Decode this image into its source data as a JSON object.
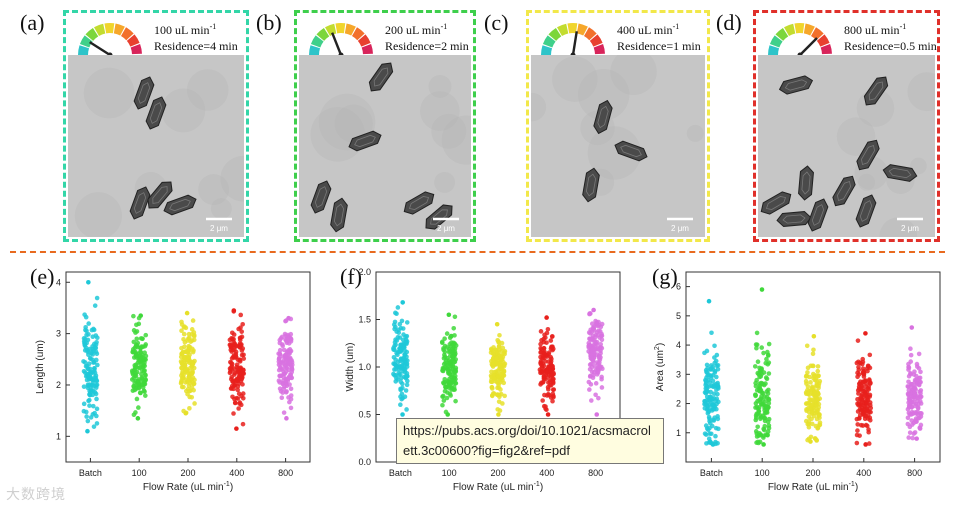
{
  "panels_top": [
    {
      "letter": "(a)",
      "flow": "100 uL min",
      "sup": "-1",
      "residence": "Residence=4 min",
      "border": "#33d6a8",
      "needle": 0.18,
      "scale": "2 μm"
    },
    {
      "letter": "(b)",
      "flow": "200 uL min",
      "sup": "-1",
      "residence": "Residence=2 min",
      "border": "#3ecf4c",
      "needle": 0.38,
      "scale": "2 μm"
    },
    {
      "letter": "(c)",
      "flow": "400 uL min",
      "sup": "-1",
      "residence": "Residence=1 min",
      "border": "#f2e84a",
      "needle": 0.55,
      "scale": "2 μm"
    },
    {
      "letter": "(d)",
      "flow": "800 uL min",
      "sup": "-1",
      "residence": "Residence=0.5 min",
      "border": "#e0302a",
      "needle": 0.75,
      "scale": "2 μm"
    }
  ],
  "gauge_colors": [
    "#2ec4c9",
    "#3fd08a",
    "#7cd63b",
    "#c2dc2f",
    "#f0d52c",
    "#f6a72a",
    "#f2702b",
    "#e8402f",
    "#d8245a"
  ],
  "panels_bottom": [
    {
      "letter": "(e)"
    },
    {
      "letter": "(f)"
    },
    {
      "letter": "(g)"
    }
  ],
  "chart_data": [
    {
      "type": "scatter",
      "xlabel": "Flow Rate (uL min",
      "xlabel_sup": "-1",
      "xlabel_end": ")",
      "ylabel": "Length (um)",
      "ylim": [
        0.5,
        4.2
      ],
      "yticks": [
        "1",
        "2",
        "3",
        "4"
      ],
      "ytick_values": [
        1,
        2,
        3,
        4
      ],
      "categories": [
        "Batch",
        "100",
        "200",
        "400",
        "800"
      ],
      "series_colors": [
        "#1ec8d8",
        "#3fd83a",
        "#e6e02a",
        "#e8201c",
        "#d872e0"
      ],
      "ranges": [
        [
          1.1,
          4.0
        ],
        [
          1.35,
          3.35
        ],
        [
          1.45,
          3.4
        ],
        [
          1.15,
          3.45
        ],
        [
          1.35,
          3.3
        ]
      ],
      "centers": [
        2.3,
        2.35,
        2.4,
        2.3,
        2.4
      ]
    },
    {
      "type": "scatter",
      "xlabel": "Flow Rate (uL min",
      "xlabel_sup": "-1",
      "xlabel_end": ")",
      "ylabel": "Width (um)",
      "ylim": [
        0.0,
        2.0
      ],
      "yticks": [
        "0.0",
        "0.5",
        "1.0",
        "1.5",
        "2.0"
      ],
      "ytick_values": [
        0,
        0.5,
        1.0,
        1.5,
        2.0
      ],
      "categories": [
        "Batch",
        "100",
        "200",
        "400",
        "800"
      ],
      "series_colors": [
        "#1ec8d8",
        "#3fd83a",
        "#e6e02a",
        "#e8201c",
        "#d872e0"
      ],
      "ranges": [
        [
          0.5,
          1.68
        ],
        [
          0.5,
          1.55
        ],
        [
          0.5,
          1.45
        ],
        [
          0.5,
          1.52
        ],
        [
          0.5,
          1.6
        ]
      ],
      "centers": [
        1.05,
        1.0,
        0.95,
        1.0,
        1.15
      ]
    },
    {
      "type": "scatter",
      "xlabel": "Flow Rate (uL min",
      "xlabel_sup": "-1",
      "xlabel_end": ")",
      "ylabel": "Area (um",
      "ylabel_sup": "2",
      "ylabel_end": ")",
      "ylim": [
        0.0,
        6.5
      ],
      "yticks": [
        "1",
        "2",
        "3",
        "4",
        "5",
        "6"
      ],
      "ytick_values": [
        1,
        2,
        3,
        4,
        5,
        6
      ],
      "categories": [
        "Batch",
        "100",
        "200",
        "400",
        "800"
      ],
      "series_colors": [
        "#1ec8d8",
        "#3fd83a",
        "#e6e02a",
        "#e8201c",
        "#d872e0"
      ],
      "ranges": [
        [
          0.6,
          5.5
        ],
        [
          0.6,
          5.9
        ],
        [
          0.7,
          4.3
        ],
        [
          0.6,
          4.4
        ],
        [
          0.8,
          4.6
        ]
      ],
      "centers": [
        2.2,
        2.1,
        2.2,
        2.1,
        2.2
      ]
    }
  ],
  "tooltip": {
    "url": "https://pubs.acs.org/doi/10.1021/acsmacrolett.3c00600?fig=fig2&ref=pdf"
  },
  "watermark": "大数跨境"
}
